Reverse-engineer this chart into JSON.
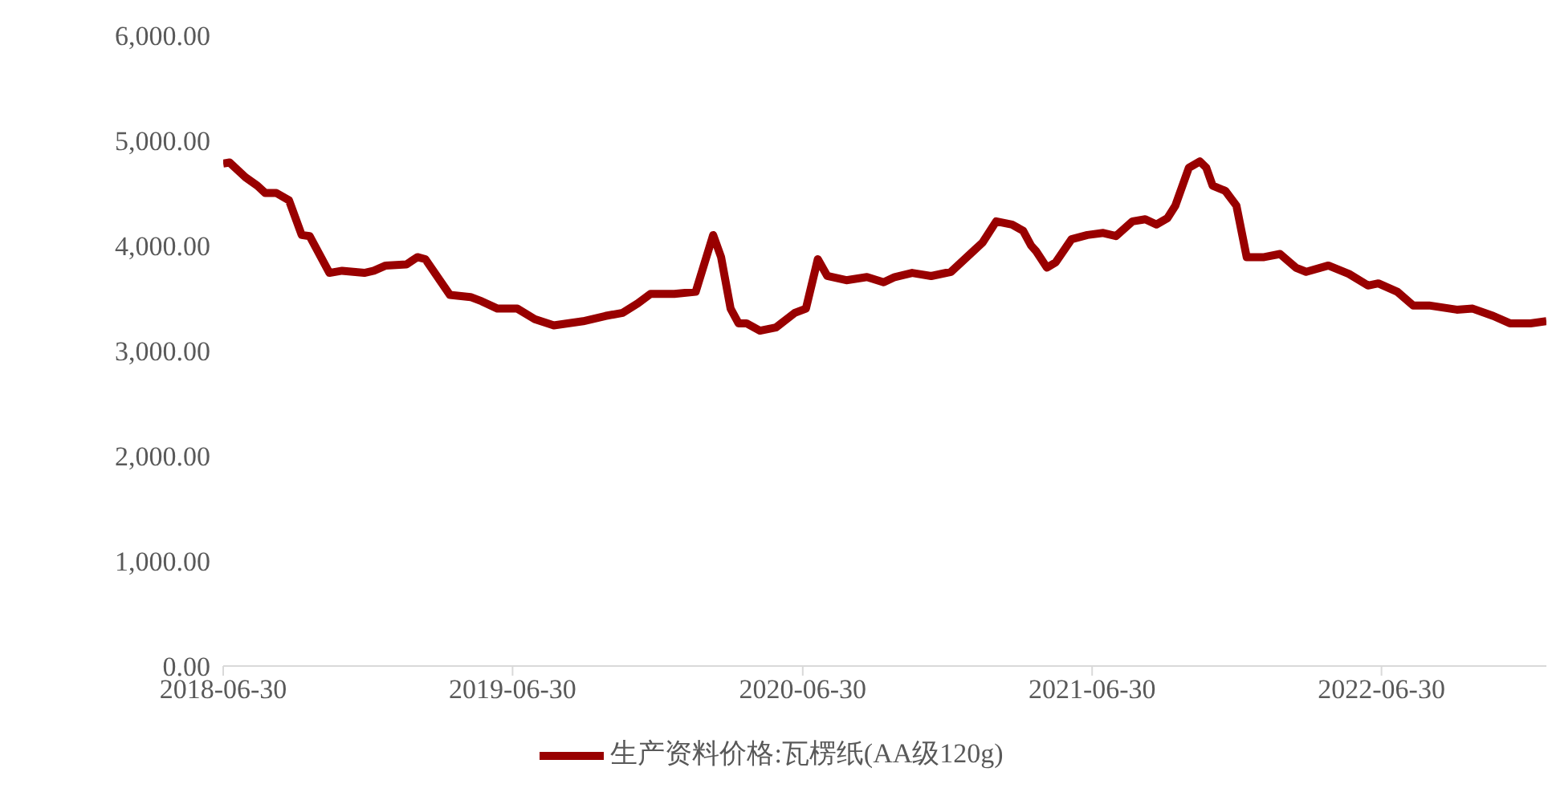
{
  "chart_data": {
    "type": "line",
    "x": [
      "2018-06-30",
      "2018-07-08",
      "2018-07-28",
      "2018-08-12",
      "2018-08-22",
      "2018-09-05",
      "2018-09-21",
      "2018-10-07",
      "2018-10-17",
      "2018-11-11",
      "2018-11-27",
      "2018-12-25",
      "2019-01-06",
      "2019-01-21",
      "2019-02-16",
      "2019-03-02",
      "2019-03-12",
      "2019-04-12",
      "2019-05-08",
      "2019-05-22",
      "2019-06-11",
      "2019-07-06",
      "2019-07-28",
      "2019-08-21",
      "2019-09-27",
      "2019-10-25",
      "2019-11-16",
      "2019-12-05",
      "2019-12-21",
      "2020-01-20",
      "2020-02-16",
      "2020-03-09",
      "2020-03-19",
      "2020-03-31",
      "2020-04-10",
      "2020-04-20",
      "2020-05-07",
      "2020-05-27",
      "2020-06-20",
      "2020-07-04",
      "2020-07-19",
      "2020-07-31",
      "2020-08-24",
      "2020-09-19",
      "2020-10-10",
      "2020-10-24",
      "2020-11-15",
      "2020-12-09",
      "2021-01-03",
      "2021-02-02",
      "2021-02-12",
      "2021-03-01",
      "2021-03-21",
      "2021-04-04",
      "2021-04-14",
      "2021-04-20",
      "2021-05-04",
      "2021-05-15",
      "2021-06-04",
      "2021-06-24",
      "2021-07-14",
      "2021-07-30",
      "2021-08-20",
      "2021-09-05",
      "2021-09-19",
      "2021-10-03",
      "2021-10-13",
      "2021-10-30",
      "2021-11-13",
      "2021-11-21",
      "2021-11-29",
      "2021-12-15",
      "2021-12-29",
      "2022-01-11",
      "2022-02-02",
      "2022-02-22",
      "2022-03-14",
      "2022-03-27",
      "2022-04-24",
      "2022-05-20",
      "2022-06-13",
      "2022-06-26",
      "2022-07-20",
      "2022-08-09",
      "2022-08-29",
      "2022-10-03",
      "2022-10-23",
      "2022-11-18",
      "2022-12-09",
      "2023-01-04",
      "2023-01-24"
    ],
    "series": [
      {
        "name": "生产资料价格:瓦楞纸(AA级120g)",
        "color": "#990000",
        "values": [
          4780,
          4790,
          4650,
          4570,
          4500,
          4500,
          4430,
          4100,
          4090,
          3740,
          3760,
          3740,
          3760,
          3810,
          3820,
          3890,
          3870,
          3530,
          3510,
          3470,
          3400,
          3400,
          3300,
          3240,
          3280,
          3330,
          3360,
          3450,
          3540,
          3540,
          3560,
          4100,
          3890,
          3400,
          3260,
          3260,
          3190,
          3220,
          3360,
          3400,
          3870,
          3710,
          3670,
          3700,
          3650,
          3700,
          3740,
          3710,
          3750,
          3960,
          4030,
          4230,
          4200,
          4140,
          4000,
          3950,
          3790,
          3840,
          4060,
          4100,
          4120,
          4090,
          4230,
          4250,
          4200,
          4260,
          4380,
          4740,
          4800,
          4740,
          4570,
          4520,
          4380,
          3890,
          3890,
          3920,
          3790,
          3750,
          3810,
          3730,
          3620,
          3640,
          3560,
          3430,
          3430,
          3390,
          3400,
          3330,
          3260,
          3260,
          3280
        ]
      }
    ],
    "xlim": [
      "2018-06-30",
      "2023-01-24"
    ],
    "xticks": [
      "2018-06-30",
      "2019-06-30",
      "2020-06-30",
      "2021-06-30",
      "2022-06-30"
    ],
    "ylim": [
      0,
      6000
    ],
    "yticks": [
      {
        "value": 0,
        "label": "0.00"
      },
      {
        "value": 1000,
        "label": "1,000.00"
      },
      {
        "value": 2000,
        "label": "2,000.00"
      },
      {
        "value": 3000,
        "label": "3,000.00"
      },
      {
        "value": 4000,
        "label": "4,000.00"
      },
      {
        "value": 5000,
        "label": "5,000.00"
      },
      {
        "value": 6000,
        "label": "6,000.00"
      }
    ],
    "grid": false,
    "legend": "bottom",
    "marker": "none",
    "line_style": "solid"
  }
}
